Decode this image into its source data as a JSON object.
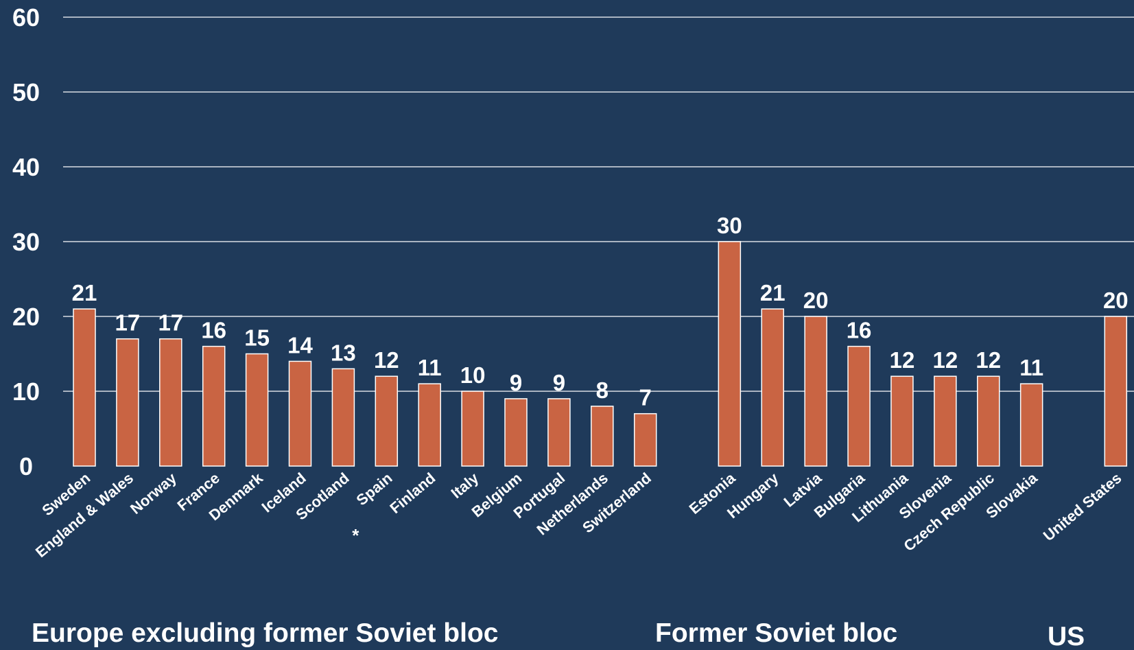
{
  "chart_data": {
    "type": "bar",
    "ylim": [
      0,
      60
    ],
    "yticks": [
      "0",
      "10",
      "20",
      "30",
      "40",
      "50",
      "60"
    ],
    "grid": true,
    "colors": {
      "background": "#1f3a5a",
      "bar": "#c96443",
      "text": "#ffffff"
    },
    "categories": [
      "Sweden",
      "England & Wales",
      "Norway",
      "France",
      "Denmark",
      "Iceland",
      "Scotland",
      "Spain",
      "Finland",
      "Italy",
      "Belgium",
      "Portugal",
      "Netherlands",
      "Switzerland",
      "Estonia",
      "Hungary",
      "Latvia",
      "Bulgaria",
      "Lithuania",
      "Slovenia",
      "Czech Republic",
      "Slovakia",
      "United States"
    ],
    "values": [
      21,
      17,
      17,
      16,
      15,
      14,
      13,
      12,
      11,
      10,
      9,
      9,
      8,
      7,
      30,
      21,
      20,
      16,
      12,
      12,
      12,
      11,
      20
    ],
    "annotations": [
      {
        "category": "Spain",
        "text": "*"
      }
    ],
    "groups": [
      {
        "label": "Europe excluding former Soviet bloc",
        "count": 14
      },
      {
        "label": "Former Soviet bloc",
        "count": 8
      },
      {
        "label": "US",
        "count": 1
      }
    ]
  }
}
